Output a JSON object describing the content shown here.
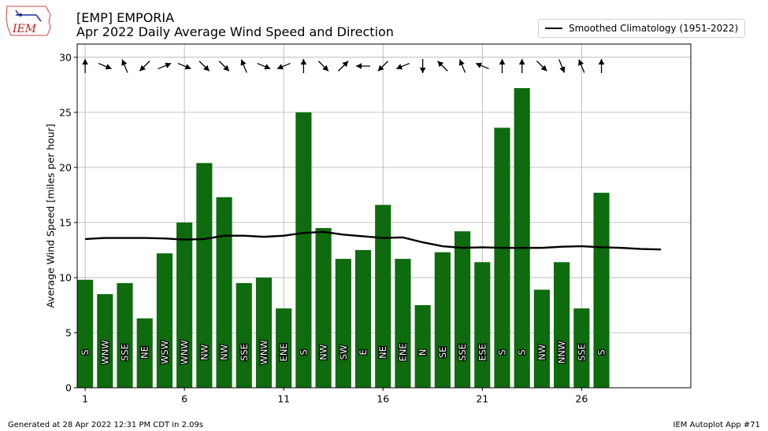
{
  "logo": {
    "text": "IEM"
  },
  "header": {
    "title": "[EMP] EMPORIA",
    "subtitle": "Apr 2022 Daily Average Wind Speed and Direction"
  },
  "legend": {
    "label": "Smoothed Climatology (1951-2022)"
  },
  "footer": {
    "left": "Generated at 28 Apr 2022 12:31 PM CDT in 2.09s",
    "right": "IEM Autoplot App #71"
  },
  "colors": {
    "bar": "#0e6b0e",
    "climo_line": "#000000",
    "grid": "#b0b0b0"
  },
  "chart_data": {
    "type": "bar",
    "ylabel": "Average Wind Speed [miles per hour]",
    "xlabel": "",
    "ylim": [
      0,
      31.2
    ],
    "xlim": [
      0.6,
      31.5
    ],
    "yticks": [
      0,
      5,
      10,
      15,
      20,
      25,
      30
    ],
    "xticks": [
      1,
      6,
      11,
      16,
      21,
      26
    ],
    "grid": true,
    "legend_position": "top-right",
    "days": [
      1,
      2,
      3,
      4,
      5,
      6,
      7,
      8,
      9,
      10,
      11,
      12,
      13,
      14,
      15,
      16,
      17,
      18,
      19,
      20,
      21,
      22,
      23,
      24,
      25,
      26,
      27
    ],
    "values": [
      9.8,
      8.5,
      9.5,
      6.3,
      12.2,
      15.0,
      20.4,
      17.3,
      9.5,
      10.0,
      7.2,
      25.0,
      14.5,
      11.7,
      12.5,
      16.6,
      11.7,
      7.5,
      12.3,
      14.2,
      11.4,
      23.6,
      27.2,
      8.9,
      11.4,
      7.2,
      17.7
    ],
    "directions": [
      "S",
      "WNW",
      "SSE",
      "NE",
      "WSW",
      "WNW",
      "NW",
      "NW",
      "SSE",
      "WNW",
      "ENE",
      "S",
      "NW",
      "SW",
      "E",
      "NE",
      "ENE",
      "N",
      "SE",
      "SSE",
      "ESE",
      "S",
      "S",
      "NW",
      "NNW",
      "SSE",
      "S"
    ],
    "climatology": {
      "name": "Smoothed Climatology (1951-2022)",
      "x": [
        1,
        2,
        3,
        4,
        5,
        6,
        7,
        8,
        9,
        10,
        11,
        12,
        13,
        14,
        15,
        16,
        17,
        18,
        19,
        20,
        21,
        22,
        23,
        24,
        25,
        26,
        27,
        28,
        29,
        30
      ],
      "values": [
        13.5,
        13.6,
        13.6,
        13.6,
        13.55,
        13.45,
        13.5,
        13.8,
        13.8,
        13.7,
        13.8,
        14.05,
        14.15,
        13.9,
        13.75,
        13.6,
        13.65,
        13.2,
        12.85,
        12.7,
        12.75,
        12.7,
        12.7,
        12.7,
        12.8,
        12.85,
        12.75,
        12.7,
        12.6,
        12.55
      ]
    }
  }
}
